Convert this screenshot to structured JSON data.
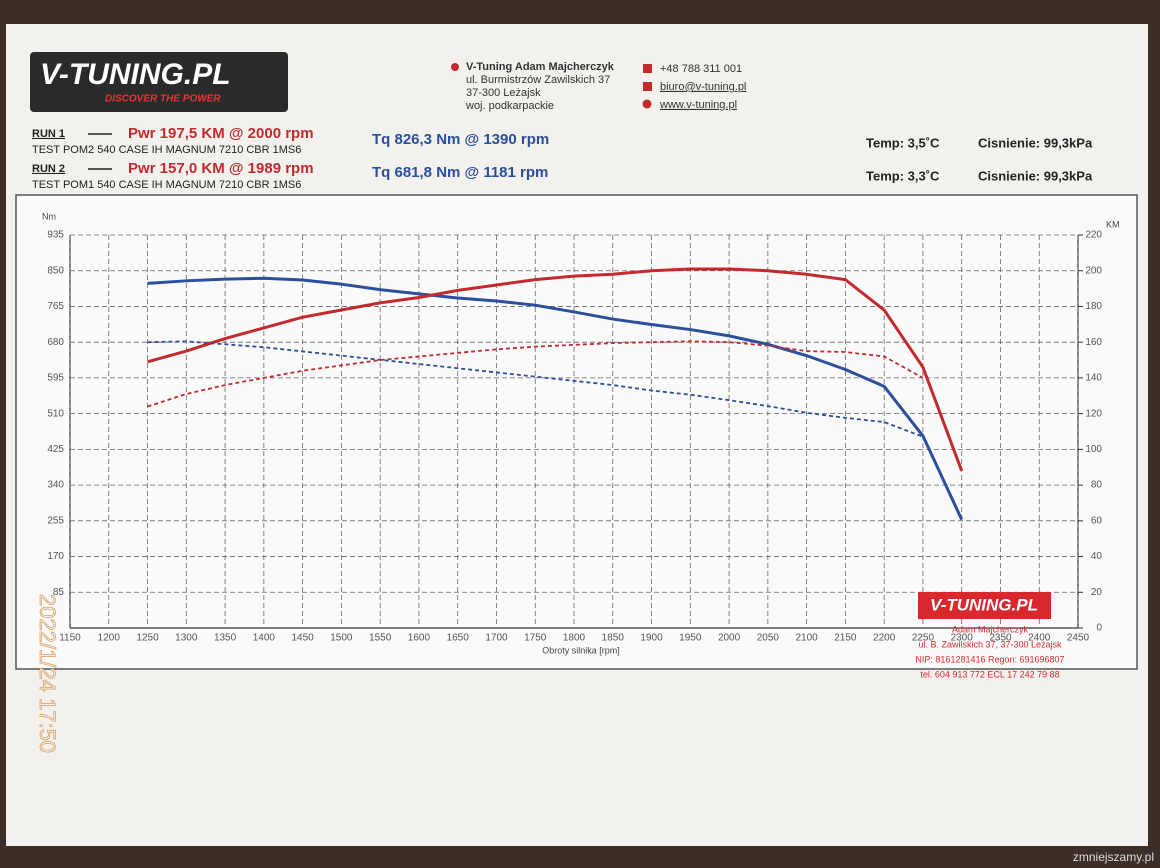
{
  "header": {
    "logo": "V-TUNING.PL",
    "slogan": "DISCOVER THE POWER",
    "company": "V-Tuning Adam Majcherczyk",
    "address": [
      "ul. Burmistrzów Zawilskich 37",
      "37-300 Leżajsk",
      "woj. podkarpackie"
    ],
    "phone": "+48 788 311 001",
    "email": "biuro@v-tuning.pl",
    "website": "www.v-tuning.pl"
  },
  "runs": [
    {
      "label": "RUN 1",
      "power": "Pwr  197,5 KM @ 2000 rpm",
      "torque": "Tq 826,3 Nm @ 1390 rpm",
      "description": "TEST POM2 540 CASE IH MAGNUM 7210 CBR 1MS6",
      "temp": "Temp: 3,5˚C",
      "pressure": "Cisnienie: 99,3kPa"
    },
    {
      "label": "RUN 2",
      "power": "Pwr  157,0 KM @ 1989 rpm",
      "torque": "Tq 681,8 Nm @ 1181 rpm",
      "description": "TEST POM1 540 CASE IH MAGNUM 7210 CBR 1MS6",
      "temp": "Temp: 3,3˚C",
      "pressure": "Cisnienie: 99,3kPa"
    }
  ],
  "chart_data": {
    "type": "line",
    "xlabel": "Obroty silnika [rpm]",
    "ylabel": "Nm",
    "y2label": "KM",
    "x": [
      1250,
      1300,
      1350,
      1400,
      1450,
      1500,
      1550,
      1600,
      1650,
      1700,
      1750,
      1800,
      1850,
      1900,
      1950,
      2000,
      2050,
      2100,
      2150,
      2200,
      2250,
      2300
    ],
    "xlim": [
      1150,
      2450
    ],
    "xticks": [
      1150,
      1200,
      1250,
      1300,
      1350,
      1400,
      1450,
      1500,
      1550,
      1600,
      1650,
      1700,
      1750,
      1800,
      1850,
      1900,
      1950,
      2000,
      2050,
      2100,
      2150,
      2200,
      2250,
      2300,
      2350,
      2400,
      2450
    ],
    "ylim": [
      0,
      935
    ],
    "yticks": [
      85,
      170,
      255,
      340,
      425,
      510,
      595,
      680,
      765,
      850,
      935
    ],
    "y2lim": [
      0,
      220
    ],
    "y2ticks": [
      0,
      20,
      40,
      60,
      80,
      100,
      120,
      140,
      160,
      180,
      200,
      220
    ],
    "grid": true,
    "series": [
      {
        "color": "#2b4f9c",
        "dashed": false,
        "values": [
          820,
          826,
          830,
          832,
          828,
          818,
          805,
          795,
          785,
          778,
          768,
          752,
          735,
          722,
          710,
          695,
          675,
          648,
          615,
          575,
          457,
          258
        ]
      },
      {
        "color": "#c22a2e",
        "dashed": false,
        "axis": "y2",
        "values": [
          149,
          155,
          162,
          168,
          174,
          178,
          182,
          185,
          189,
          192,
          195,
          197,
          198,
          200,
          201,
          201,
          200,
          198,
          195,
          178,
          146,
          88
        ]
      },
      {
        "color": "#2b4f9c",
        "dashed": true,
        "values": [
          680,
          682,
          675,
          668,
          658,
          648,
          638,
          628,
          618,
          608,
          598,
          588,
          578,
          565,
          555,
          542,
          528,
          512,
          500,
          490,
          455,
          null
        ]
      },
      {
        "color": "#c22a2e",
        "dashed": true,
        "axis": "y2",
        "values": [
          124,
          131,
          136,
          140,
          144,
          147,
          150,
          152,
          154,
          156,
          157.5,
          158.5,
          159.5,
          160,
          160.5,
          160,
          158,
          155,
          154.5,
          152,
          140,
          null
        ]
      }
    ]
  },
  "stamp": {
    "logo": "V-TUNING.PL",
    "lines": [
      "Adam Majcherczyk",
      "ul. B. Zawilskich 37, 37-300 Leżajsk",
      "NIP: 8161281416 Regon: 691696807",
      "tel. 604 913 772 ECL 17 242 79 88"
    ]
  },
  "timestamp": "2022/1/24 17:50",
  "watermark": "zmniejszamy.pl"
}
